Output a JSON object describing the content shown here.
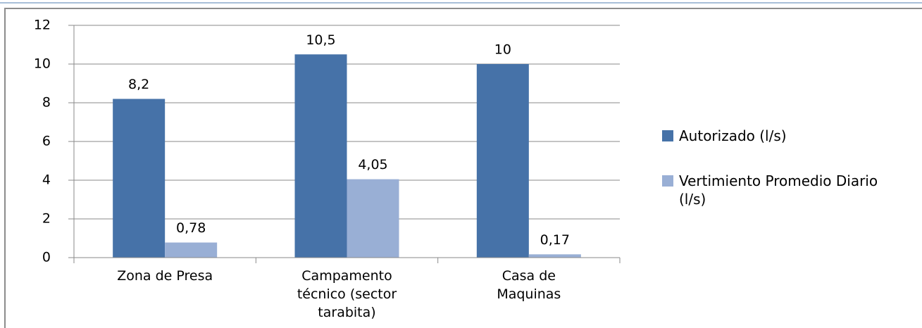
{
  "chart_data": {
    "type": "bar",
    "categories": [
      [
        "Zona de Presa"
      ],
      [
        "Campamento",
        "técnico (sector",
        "tarabita)"
      ],
      [
        "Casa de",
        "Maquinas"
      ]
    ],
    "series": [
      {
        "name": "Autorizado (l/s)",
        "color": "#4672a8",
        "values": [
          8.2,
          10.5,
          10
        ],
        "value_labels": [
          "8,2",
          "10,5",
          "10"
        ]
      },
      {
        "name": "Vertimiento Promedio Diario (l/s)",
        "color": "#99afd5",
        "values": [
          0.78,
          4.05,
          0.17
        ],
        "value_labels": [
          "0,78",
          "4,05",
          "0,17"
        ]
      }
    ],
    "ylim": [
      0,
      12
    ],
    "yticks": [
      0,
      2,
      4,
      6,
      8,
      10,
      12
    ],
    "grid": true,
    "legend": "right"
  }
}
